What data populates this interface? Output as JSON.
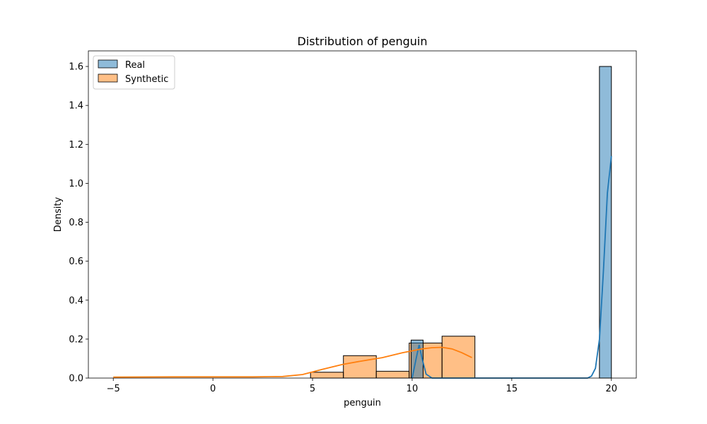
{
  "chart_data": {
    "type": "histogram",
    "title": "Distribution of penguin",
    "xlabel": "penguin",
    "ylabel": "Density",
    "xlim": [
      -6.25,
      21.25
    ],
    "ylim": [
      0,
      1.68
    ],
    "xticks": [
      -5,
      0,
      5,
      10,
      15,
      20
    ],
    "yticks": [
      0.0,
      0.2,
      0.4,
      0.6,
      0.8,
      1.0,
      1.2,
      1.4,
      1.6
    ],
    "grid": false,
    "legend_placement": "top-left",
    "series": [
      {
        "name": "Real",
        "color": "#1f77b4",
        "bins": [
          {
            "x0": 9.95,
            "x1": 10.55,
            "density": 0.195
          },
          {
            "x0": 19.4,
            "x1": 20.0,
            "density": 1.6
          }
        ],
        "kde": [
          [
            10.0,
            0.0
          ],
          [
            10.2,
            0.1
          ],
          [
            10.35,
            0.17
          ],
          [
            10.5,
            0.1
          ],
          [
            10.7,
            0.02
          ],
          [
            11.0,
            0.0
          ],
          [
            18.8,
            0.0
          ],
          [
            19.0,
            0.01
          ],
          [
            19.2,
            0.05
          ],
          [
            19.4,
            0.2
          ],
          [
            19.6,
            0.55
          ],
          [
            19.8,
            0.95
          ],
          [
            20.0,
            1.14
          ]
        ]
      },
      {
        "name": "Synthetic",
        "color": "#ff7f0e",
        "bins": [
          {
            "x0": 4.9,
            "x1": 6.55,
            "density": 0.03
          },
          {
            "x0": 6.55,
            "x1": 8.2,
            "density": 0.115
          },
          {
            "x0": 8.2,
            "x1": 9.85,
            "density": 0.035
          },
          {
            "x0": 9.85,
            "x1": 11.5,
            "density": 0.18
          },
          {
            "x0": 11.5,
            "x1": 13.15,
            "density": 0.215
          }
        ],
        "kde": [
          [
            -5.0,
            0.005
          ],
          [
            -2.0,
            0.006
          ],
          [
            0.0,
            0.006
          ],
          [
            2.0,
            0.006
          ],
          [
            3.5,
            0.008
          ],
          [
            4.5,
            0.018
          ],
          [
            5.5,
            0.045
          ],
          [
            6.5,
            0.07
          ],
          [
            7.5,
            0.088
          ],
          [
            8.5,
            0.105
          ],
          [
            9.5,
            0.13
          ],
          [
            10.5,
            0.15
          ],
          [
            11.0,
            0.156
          ],
          [
            11.5,
            0.158
          ],
          [
            12.0,
            0.15
          ],
          [
            12.5,
            0.13
          ],
          [
            13.0,
            0.105
          ]
        ]
      }
    ]
  }
}
